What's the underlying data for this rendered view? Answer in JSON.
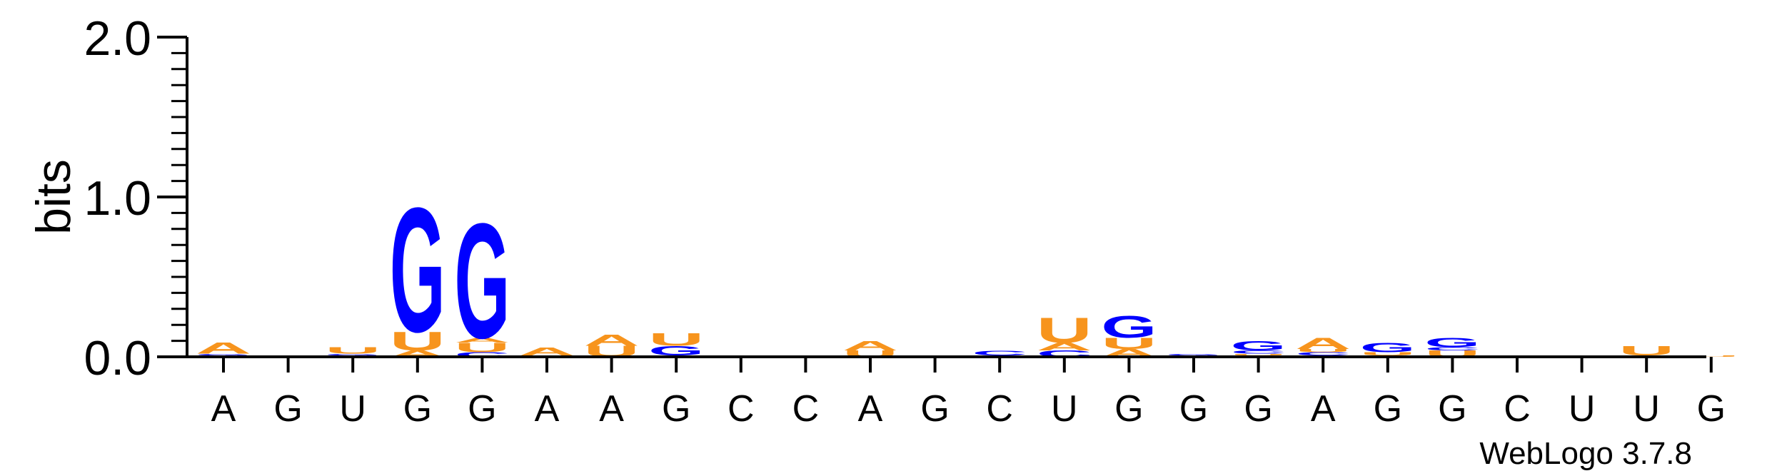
{
  "chart_data": {
    "type": "sequence-logo",
    "ylabel": "bits",
    "ylim": [
      0,
      2.0
    ],
    "yticks": [
      "0.0",
      "1.0",
      "2.0"
    ],
    "sequence": [
      "A",
      "G",
      "U",
      "G",
      "G",
      "A",
      "A",
      "G",
      "C",
      "C",
      "A",
      "G",
      "C",
      "U",
      "G",
      "G",
      "G",
      "A",
      "G",
      "G",
      "C",
      "U",
      "U",
      "G"
    ],
    "colors": {
      "A": "#f7941d",
      "U": "#f7941d",
      "G": "#0000ff",
      "C": "#0000ff"
    },
    "columns": [
      [
        {
          "l": "U",
          "h": 0.01
        },
        {
          "l": "G",
          "h": 0.01
        },
        {
          "l": "A",
          "h": 0.07
        }
      ],
      [
        {
          "l": "A",
          "h": 0.01
        }
      ],
      [
        {
          "l": "A",
          "h": 0.01
        },
        {
          "l": "G",
          "h": 0.01
        },
        {
          "l": "U",
          "h": 0.04
        }
      ],
      [
        {
          "l": "A",
          "h": 0.04
        },
        {
          "l": "U",
          "h": 0.12
        },
        {
          "l": "G",
          "h": 0.8
        }
      ],
      [
        {
          "l": "C",
          "h": 0.03
        },
        {
          "l": "U",
          "h": 0.06
        },
        {
          "l": "A",
          "h": 0.03
        },
        {
          "l": "G",
          "h": 0.74
        }
      ],
      [
        {
          "l": "U",
          "h": 0.01
        },
        {
          "l": "A",
          "h": 0.05
        }
      ],
      [
        {
          "l": "U",
          "h": 0.07
        },
        {
          "l": "A",
          "h": 0.07
        }
      ],
      [
        {
          "l": "U",
          "h": 0.01
        },
        {
          "l": "G",
          "h": 0.06
        },
        {
          "l": "U",
          "h": 0.08
        }
      ],
      [
        {
          "l": "U",
          "h": 0.01
        }
      ],
      [
        {
          "l": "G",
          "h": 0.01
        }
      ],
      [
        {
          "l": "U",
          "h": 0.04
        },
        {
          "l": "A",
          "h": 0.06
        }
      ],
      [],
      [
        {
          "l": "G",
          "h": 0.01
        },
        {
          "l": "C",
          "h": 0.03
        }
      ],
      [
        {
          "l": "C",
          "h": 0.04
        },
        {
          "l": "A",
          "h": 0.05
        },
        {
          "l": "U",
          "h": 0.16
        }
      ],
      [
        {
          "l": "A",
          "h": 0.05
        },
        {
          "l": "U",
          "h": 0.07
        },
        {
          "l": "G",
          "h": 0.14
        }
      ],
      [
        {
          "l": "C",
          "h": 0.01
        },
        {
          "l": "G",
          "h": 0.01
        }
      ],
      [
        {
          "l": "A",
          "h": 0.01
        },
        {
          "l": "U",
          "h": 0.01
        },
        {
          "l": "C",
          "h": 0.02
        },
        {
          "l": "G",
          "h": 0.06
        }
      ],
      [
        {
          "l": "G",
          "h": 0.01
        },
        {
          "l": "C",
          "h": 0.02
        },
        {
          "l": "U",
          "h": 0.02
        },
        {
          "l": "A",
          "h": 0.07
        }
      ],
      [
        {
          "l": "C",
          "h": 0.01
        },
        {
          "l": "U",
          "h": 0.02
        },
        {
          "l": "G",
          "h": 0.06
        }
      ],
      [
        {
          "l": "U",
          "h": 0.04
        },
        {
          "l": "C",
          "h": 0.02
        },
        {
          "l": "G",
          "h": 0.06
        }
      ],
      [
        {
          "l": "A",
          "h": 0.01
        }
      ],
      [
        {
          "l": "U",
          "h": 0.01
        }
      ],
      [
        {
          "l": "C",
          "h": 0.01
        },
        {
          "l": "U",
          "h": 0.06
        }
      ],
      [
        {
          "l": "U",
          "h": 0.01
        }
      ]
    ]
  },
  "credit": "WebLogo 3.7.8"
}
